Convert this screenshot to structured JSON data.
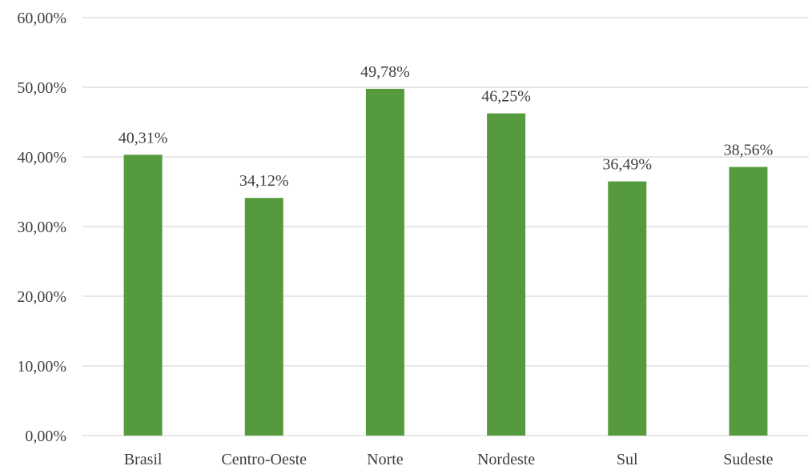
{
  "chart_data": {
    "type": "bar",
    "categories": [
      "Brasil",
      "Centro-Oeste",
      "Norte",
      "Nordeste",
      "Sul",
      "Sudeste"
    ],
    "values": [
      40.31,
      34.12,
      49.78,
      46.25,
      36.49,
      38.56
    ],
    "data_labels": [
      "40,31%",
      "34,12%",
      "49,78%",
      "46,25%",
      "36,49%",
      "38,56%"
    ],
    "y_ticks": [
      0,
      10,
      20,
      30,
      40,
      50,
      60
    ],
    "y_tick_labels": [
      "0,00%",
      "10,00%",
      "20,00%",
      "30,00%",
      "40,00%",
      "50,00%",
      "60,00%"
    ],
    "ylim": [
      0,
      60
    ],
    "bar_color": "#559b3d",
    "grid": true,
    "legend": false,
    "title": "",
    "xlabel": "",
    "ylabel": ""
  }
}
